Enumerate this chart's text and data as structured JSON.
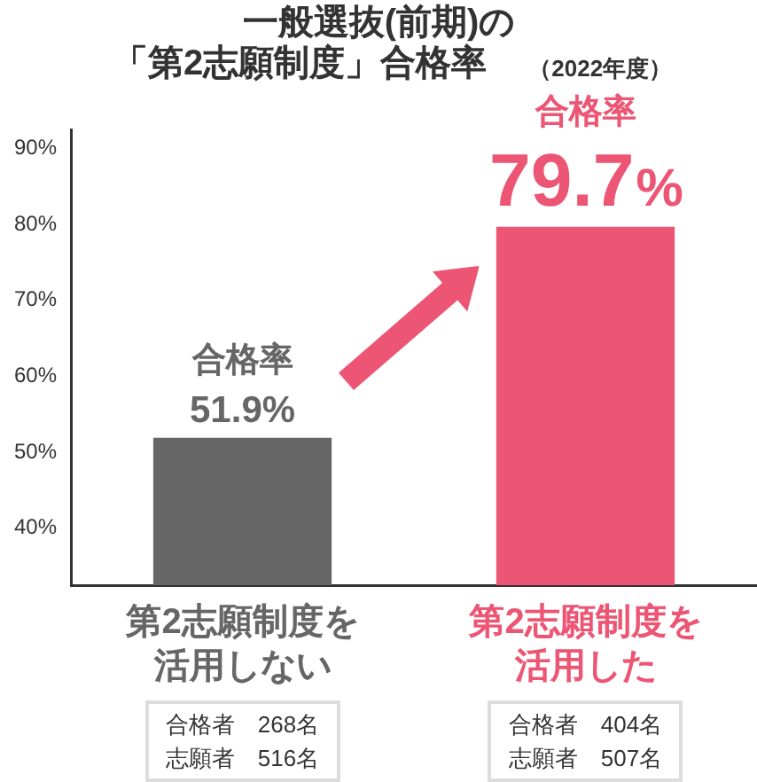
{
  "chart_data": {
    "type": "bar",
    "title": "一般選抜(前期)の「第2志願制度」合格率",
    "subtitle": "（2022年度）",
    "categories": [
      "第2志願制度を活用しない",
      "第2志願制度を活用した"
    ],
    "values": [
      51.9,
      79.7
    ],
    "colors": [
      "#666666",
      "#ec5574"
    ],
    "value_labels": [
      "合格率\n51.9%",
      "合格率\n79.7%"
    ],
    "ylim": [
      32.5,
      92.5
    ],
    "yticks": [
      {
        "value": 40,
        "label": "40%"
      },
      {
        "value": 50,
        "label": "50%"
      },
      {
        "value": 60,
        "label": "60%"
      },
      {
        "value": 70,
        "label": "70%"
      },
      {
        "value": 80,
        "label": "80%"
      },
      {
        "value": 90,
        "label": "90%"
      }
    ],
    "grid": false,
    "legend": false,
    "annotations": [
      "合格者　268名志願者　516名",
      "合格者　404名志願者　507名"
    ]
  }
}
